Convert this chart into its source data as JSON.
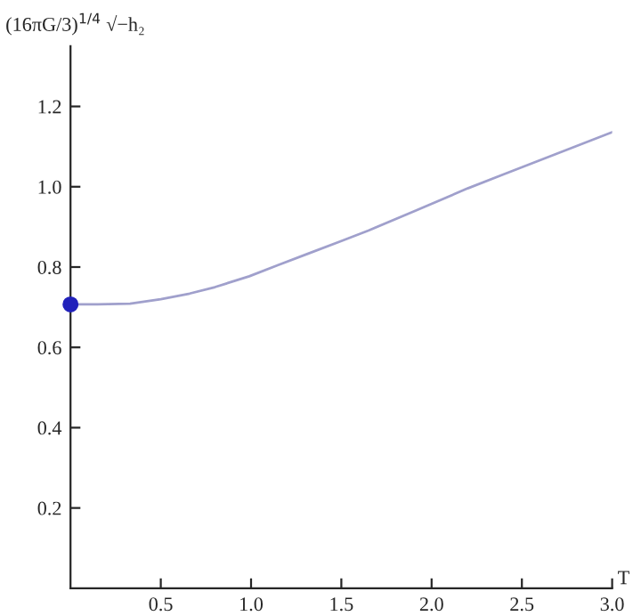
{
  "chart_data": {
    "type": "line",
    "xlabel": "T",
    "ylabel": "(16πG/3)$^{1/4}$ √−h₂",
    "xlim": [
      0,
      3
    ],
    "ylim": [
      0,
      1.35
    ],
    "xticks": [
      {
        "value": 0.5,
        "label": "0.5"
      },
      {
        "value": 1,
        "label": "1.0"
      },
      {
        "value": 1.5,
        "label": "1.5"
      },
      {
        "value": 2,
        "label": "2.0"
      },
      {
        "value": 2.5,
        "label": "2.5"
      },
      {
        "value": 3,
        "label": "3.0"
      }
    ],
    "yticks": [
      0.2,
      0.4,
      0.6,
      0.8,
      {
        "value": 1,
        "label": "1.0"
      },
      1.2
    ],
    "grid": false,
    "legend": false,
    "series": [
      {
        "color": "#a0a0cc",
        "x": [
          0,
          0.15,
          0.33,
          0.5,
          0.66,
          0.8,
          0.99,
          1.15,
          1.32,
          1.5,
          1.65,
          1.91,
          2.2,
          2.4,
          2.6,
          2.8,
          3.0
        ],
        "values": [
          0.707,
          0.707,
          0.709,
          0.72,
          0.734,
          0.75,
          0.777,
          0.805,
          0.834,
          0.865,
          0.891,
          0.94,
          0.996,
          1.031,
          1.066,
          1.101,
          1.136
        ]
      },
      {
        "type": "scatter",
        "color": "#2222bb",
        "marker": "circle",
        "x": [
          0
        ],
        "values": [
          0.707
        ]
      }
    ]
  }
}
